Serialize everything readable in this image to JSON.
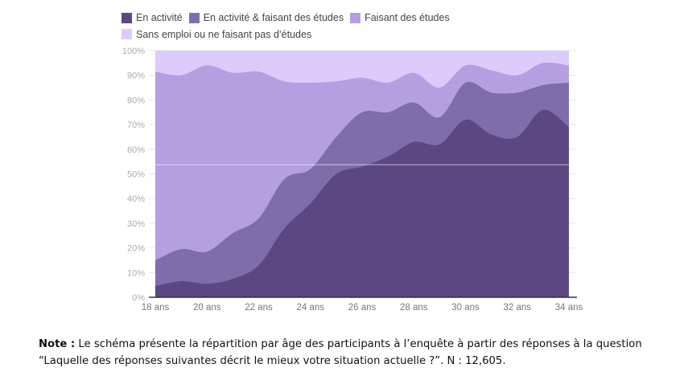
{
  "chart_data": {
    "type": "area",
    "stacked": true,
    "x": [
      18,
      19,
      20,
      21,
      22,
      23,
      24,
      25,
      26,
      27,
      28,
      29,
      30,
      31,
      32,
      33,
      34
    ],
    "xtick_labels": [
      "18 ans",
      "20 ans",
      "22 ans",
      "24 ans",
      "26 ans",
      "28 ans",
      "30 ans",
      "32 ans",
      "34 ans"
    ],
    "ytick_labels": [
      "0%",
      "10%",
      "20%",
      "30%",
      "40%",
      "50%",
      "60%",
      "70%",
      "80%",
      "90%",
      "100%"
    ],
    "ylim": [
      0,
      100
    ],
    "legend_position": "top",
    "series": [
      {
        "name": "En activité",
        "color": "#5b4883",
        "values": [
          4.5,
          6.5,
          5.5,
          7.5,
          13,
          28,
          38,
          50,
          53,
          57,
          63,
          62,
          72,
          66,
          65,
          76,
          69
        ]
      },
      {
        "name": "En activité & faisant des études",
        "color": "#7f6dab",
        "values": [
          10.5,
          13,
          13,
          18.5,
          19,
          20,
          14,
          15,
          22,
          18,
          16,
          11,
          15,
          17,
          18,
          10,
          18
        ]
      },
      {
        "name": "Faisant des études",
        "color": "#b49fe0",
        "values": [
          76.5,
          70.5,
          75.5,
          65,
          59.5,
          39.5,
          35,
          22.5,
          14,
          12,
          12,
          12,
          7,
          9,
          7,
          9,
          7
        ]
      },
      {
        "name": "Sans emploi ou ne faisant pas d’études",
        "color": "#dccbfb",
        "values": [
          8.5,
          10,
          6,
          9,
          8.5,
          12.5,
          13,
          12.5,
          11,
          13,
          9,
          15,
          6,
          8,
          10,
          5,
          6
        ]
      }
    ]
  },
  "note": {
    "label": "Note :",
    "text": " Le schéma présente la répartition par âge des participants à l’enquête à partir des réponses à la question “Laquelle des réponses suivantes décrit le mieux votre situation actuelle ?”. N : 12,605."
  }
}
